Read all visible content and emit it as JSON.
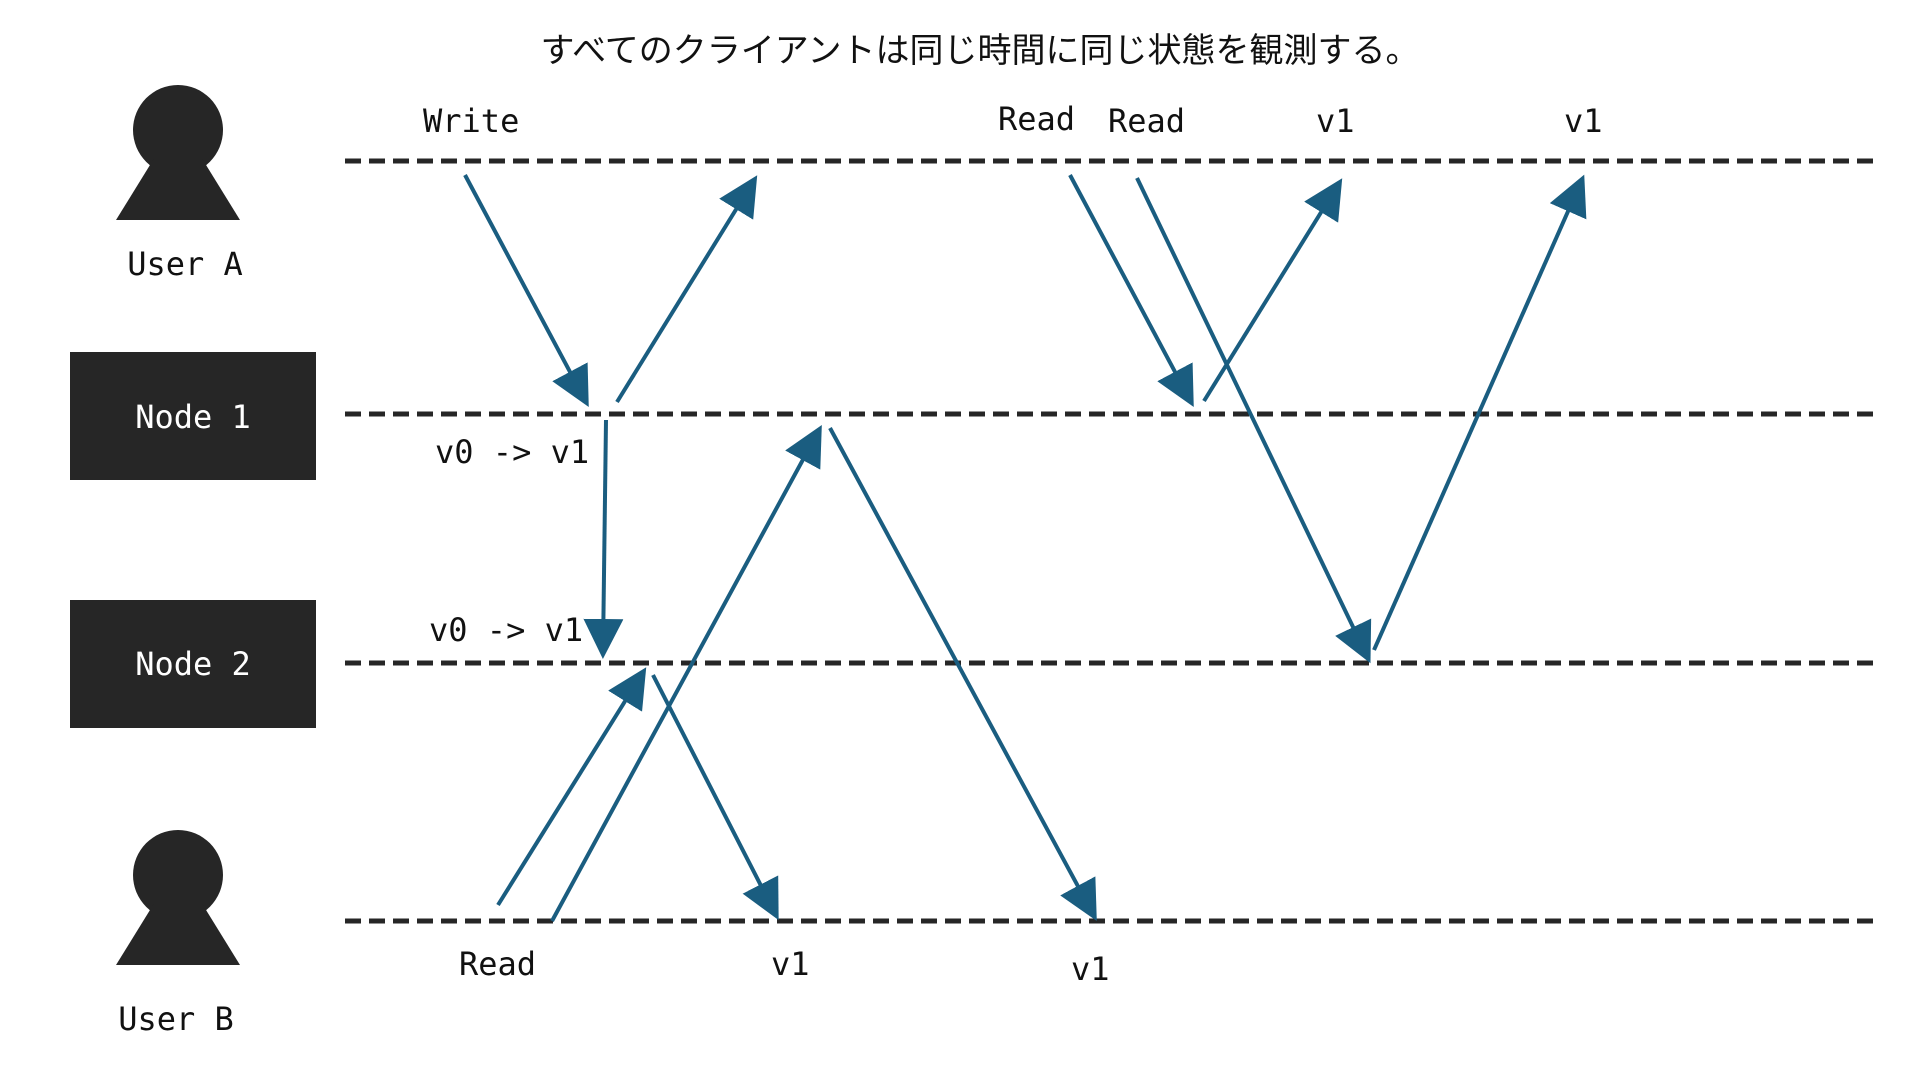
{
  "title": "すべてのクライアントは同じ時間に同じ状態を観測する。",
  "actors": {
    "user_a": "User A",
    "user_b": "User B",
    "node_1": "Node 1",
    "node_2": "Node 2"
  },
  "labels": {
    "write": "Write",
    "read_a1": "Read",
    "read_a2": "Read",
    "v1_a1": "v1",
    "v1_a2": "v1",
    "node1_state": "v0 -> v1",
    "node2_state": "v0 -> v1",
    "read_b": "Read",
    "v1_b1": "v1",
    "v1_b2": "v1"
  },
  "colors": {
    "arrow": "#1a5d80",
    "dark": "#262626",
    "background": "#ffffff"
  },
  "icons": {
    "user_a": "person-icon",
    "user_b": "person-icon"
  }
}
